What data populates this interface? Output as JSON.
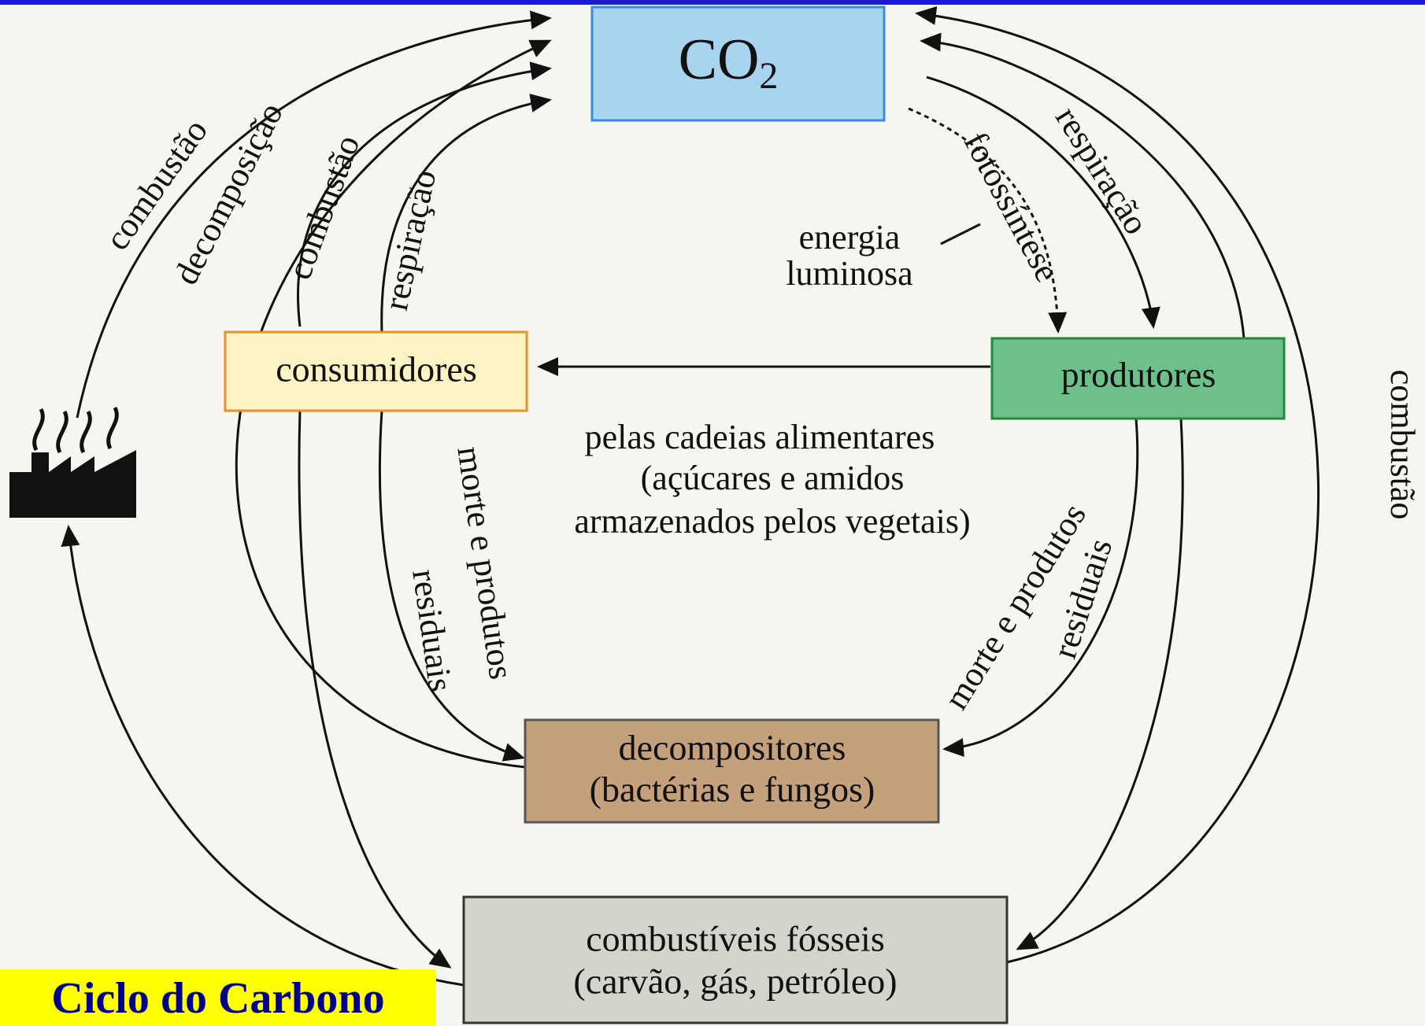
{
  "title": "Ciclo do Carbono",
  "nodes": {
    "co2": {
      "main": "CO",
      "sub": "2"
    },
    "consumidores": "consumidores",
    "produtores": "produtores",
    "decompositores": [
      "decompositores",
      "(bactérias e fungos)"
    ],
    "combustiveis": [
      "combustíveis fósseis",
      "(carvão, gás, petróleo)"
    ]
  },
  "labels": {
    "combustao_outer_left": "combustão",
    "decomposicao": "decomposição",
    "combustao_inner_left": "combustão",
    "respiracao_left": "respiração",
    "respiracao_right": "respiração",
    "fotossintese": "fotossíntese",
    "energia": [
      "energia",
      "luminosa"
    ],
    "combustao_right": "combustão",
    "cadeias": [
      "pelas cadeias alimentares",
      "(açúcares e amidos",
      "armazenados pelos vegetais)"
    ],
    "morte_left": [
      "morte e produtos",
      "residuais"
    ],
    "morte_right": [
      "morte e produtos",
      "residuais"
    ]
  }
}
